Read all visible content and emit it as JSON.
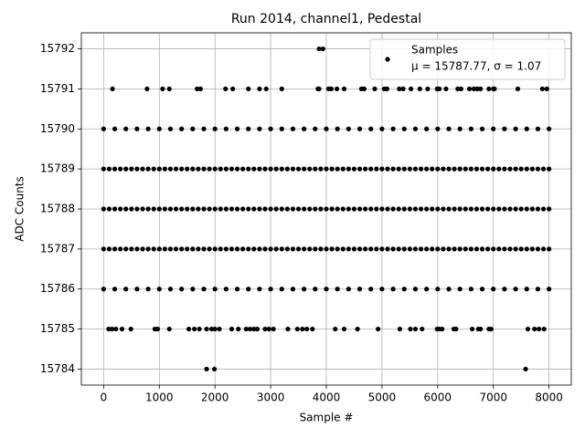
{
  "chart_data": {
    "type": "scatter",
    "title": "Run 2014, channel1, Pedestal",
    "x_label": "Sample #",
    "y_label": "ADC Counts",
    "xlim": [
      -400,
      8400
    ],
    "xticks": [
      0,
      1000,
      2000,
      3000,
      4000,
      5000,
      6000,
      7000,
      8000
    ],
    "ylim": [
      15783.6,
      15792.4
    ],
    "yticks": [
      15784,
      15785,
      15786,
      15787,
      15788,
      15789,
      15790,
      15791,
      15792
    ],
    "grid": true,
    "legend": "upper right",
    "annotation": "μ = 15787.77, σ = 1.07",
    "series": [
      {
        "name": "Samples",
        "color": "#000000",
        "x": [
          0,
          100,
          200,
          300,
          400,
          500,
          600,
          700,
          800,
          900,
          1000,
          1100,
          1200,
          1300,
          1400,
          1500,
          1600,
          1700,
          1800,
          1900,
          2000,
          2100,
          2200,
          2300,
          2400,
          2500,
          2600,
          2700,
          2800,
          2900,
          3000,
          3100,
          3200,
          3300,
          3400,
          3500,
          3600,
          3700,
          3800,
          3900,
          4000,
          4100,
          4200,
          4300,
          4400,
          4500,
          4600,
          4700,
          4800,
          4900,
          5000,
          5100,
          5200,
          5300,
          5400,
          5500,
          5600,
          5700,
          5800,
          5900,
          6000,
          6100,
          6200,
          6300,
          6400,
          6500,
          6600,
          6700,
          6800,
          6900,
          7000,
          7100,
          7200,
          7300,
          7400,
          7500,
          7600,
          7700,
          7800,
          7900,
          8000,
          0,
          100,
          200,
          300,
          400,
          500,
          600,
          700,
          800,
          900,
          1000,
          1100,
          1200,
          1300,
          1400,
          1500,
          1600,
          1700,
          1800,
          1900,
          2000,
          2100,
          2200,
          2300,
          2400,
          2500,
          2600,
          2700,
          2800,
          2900,
          3000,
          3100,
          3200,
          3300,
          3400,
          3500,
          3600,
          3700,
          3800,
          3900,
          4000,
          4100,
          4200,
          4300,
          4400,
          4500,
          4600,
          4700,
          4800,
          4900,
          5000,
          5100,
          5200,
          5300,
          5400,
          5500,
          5600,
          5700,
          5800,
          5900,
          6000,
          6100,
          6200,
          6300,
          6400,
          6500,
          6600,
          6700,
          6800,
          6900,
          7000,
          7100,
          7200,
          7300,
          7400,
          7500,
          7600,
          7700,
          7800,
          7900,
          8000,
          0,
          100,
          200,
          300,
          400,
          500,
          600,
          700,
          800,
          900,
          1000,
          1100,
          1200,
          1300,
          1400,
          1500,
          1600,
          1700,
          1800,
          1900,
          2000,
          2100,
          2200,
          2300,
          2400,
          2500,
          2600,
          2700,
          2800,
          2900,
          3000,
          3100,
          3200,
          3300,
          3400,
          3500,
          3600,
          3700,
          3800,
          3900,
          4000,
          4100,
          4200,
          4300,
          4400,
          4500,
          4600,
          4700,
          4800,
          4900,
          5000,
          5100,
          5200,
          5300,
          5400,
          5500,
          5600,
          5700,
          5800,
          5900,
          6000,
          6100,
          6200,
          6300,
          6400,
          6500,
          6600,
          6700,
          6800,
          6900,
          7000,
          7100,
          7200,
          7300,
          7400,
          7500,
          7600,
          7700,
          7800,
          7900,
          8000,
          0,
          200,
          400,
          600,
          800,
          1000,
          1200,
          1400,
          1600,
          1800,
          2000,
          2200,
          2400,
          2600,
          2800,
          3000,
          3200,
          3400,
          3600,
          3800,
          4000,
          4200,
          4400,
          4600,
          4800,
          5000,
          5200,
          5400,
          5600,
          5800,
          6000,
          6200,
          6400,
          6600,
          6800,
          7000,
          7200,
          7400,
          7600,
          7800,
          8000,
          0,
          200,
          400,
          600,
          800,
          1000,
          1200,
          1400,
          1600,
          1800,
          2000,
          2200,
          2400,
          2600,
          2800,
          3000,
          3200,
          3400,
          3600,
          3800,
          4000,
          4200,
          4400,
          4600,
          4800,
          5000,
          5200,
          5400,
          5600,
          5800,
          6000,
          6200,
          6400,
          6600,
          6800,
          7000,
          7200,
          7400,
          7600,
          7800,
          8000,
          3870,
          3940,
          1850,
          1990,
          7580,
          160,
          780,
          1060,
          1180,
          1680,
          1740,
          2190,
          2320,
          2600,
          2800,
          2920,
          3200,
          3850,
          3870,
          4040,
          4090,
          4190,
          4320,
          4630,
          4680,
          4870,
          5040,
          5090,
          5310,
          5380,
          5520,
          5680,
          5820,
          5990,
          6030,
          6150,
          6360,
          6420,
          6570,
          6650,
          6710,
          6770,
          6920,
          7000,
          7020,
          7440,
          7880,
          7960,
          90,
          150,
          220,
          330,
          490,
          920,
          970,
          1180,
          1530,
          1630,
          1720,
          1850,
          1940,
          2000,
          2080,
          2300,
          2420,
          2560,
          2630,
          2700,
          2760,
          2900,
          2970,
          3050,
          3310,
          3480,
          3570,
          3650,
          3750,
          4160,
          4320,
          4560,
          4930,
          5320,
          5510,
          5600,
          5720,
          5990,
          6030,
          6080,
          6290,
          6330,
          6620,
          6730,
          6770,
          6920,
          6960,
          7620,
          7740,
          7820,
          7910
        ],
        "values": [
          15787,
          15787,
          15787,
          15787,
          15787,
          15787,
          15787,
          15787,
          15787,
          15787,
          15787,
          15787,
          15787,
          15787,
          15787,
          15787,
          15787,
          15787,
          15787,
          15787,
          15787,
          15787,
          15787,
          15787,
          15787,
          15787,
          15787,
          15787,
          15787,
          15787,
          15787,
          15787,
          15787,
          15787,
          15787,
          15787,
          15787,
          15787,
          15787,
          15787,
          15787,
          15787,
          15787,
          15787,
          15787,
          15787,
          15787,
          15787,
          15787,
          15787,
          15787,
          15787,
          15787,
          15787,
          15787,
          15787,
          15787,
          15787,
          15787,
          15787,
          15787,
          15787,
          15787,
          15787,
          15787,
          15787,
          15787,
          15787,
          15787,
          15787,
          15787,
          15787,
          15787,
          15787,
          15787,
          15787,
          15787,
          15787,
          15787,
          15787,
          15787,
          15788,
          15788,
          15788,
          15788,
          15788,
          15788,
          15788,
          15788,
          15788,
          15788,
          15788,
          15788,
          15788,
          15788,
          15788,
          15788,
          15788,
          15788,
          15788,
          15788,
          15788,
          15788,
          15788,
          15788,
          15788,
          15788,
          15788,
          15788,
          15788,
          15788,
          15788,
          15788,
          15788,
          15788,
          15788,
          15788,
          15788,
          15788,
          15788,
          15788,
          15788,
          15788,
          15788,
          15788,
          15788,
          15788,
          15788,
          15788,
          15788,
          15788,
          15788,
          15788,
          15788,
          15788,
          15788,
          15788,
          15788,
          15788,
          15788,
          15788,
          15788,
          15788,
          15788,
          15788,
          15788,
          15788,
          15788,
          15788,
          15788,
          15788,
          15788,
          15788,
          15788,
          15788,
          15788,
          15788,
          15788,
          15788,
          15788,
          15788,
          15788,
          15789,
          15789,
          15789,
          15789,
          15789,
          15789,
          15789,
          15789,
          15789,
          15789,
          15789,
          15789,
          15789,
          15789,
          15789,
          15789,
          15789,
          15789,
          15789,
          15789,
          15789,
          15789,
          15789,
          15789,
          15789,
          15789,
          15789,
          15789,
          15789,
          15789,
          15789,
          15789,
          15789,
          15789,
          15789,
          15789,
          15789,
          15789,
          15789,
          15789,
          15789,
          15789,
          15789,
          15789,
          15789,
          15789,
          15789,
          15789,
          15789,
          15789,
          15789,
          15789,
          15789,
          15789,
          15789,
          15789,
          15789,
          15789,
          15789,
          15789,
          15789,
          15789,
          15789,
          15789,
          15789,
          15789,
          15789,
          15789,
          15789,
          15789,
          15789,
          15789,
          15789,
          15789,
          15789,
          15789,
          15789,
          15789,
          15789,
          15789,
          15789,
          15786,
          15786,
          15786,
          15786,
          15786,
          15786,
          15786,
          15786,
          15786,
          15786,
          15786,
          15786,
          15786,
          15786,
          15786,
          15786,
          15786,
          15786,
          15786,
          15786,
          15786,
          15786,
          15786,
          15786,
          15786,
          15786,
          15786,
          15786,
          15786,
          15786,
          15786,
          15786,
          15786,
          15786,
          15786,
          15786,
          15786,
          15786,
          15786,
          15786,
          15786,
          15790,
          15790,
          15790,
          15790,
          15790,
          15790,
          15790,
          15790,
          15790,
          15790,
          15790,
          15790,
          15790,
          15790,
          15790,
          15790,
          15790,
          15790,
          15790,
          15790,
          15790,
          15790,
          15790,
          15790,
          15790,
          15790,
          15790,
          15790,
          15790,
          15790,
          15790,
          15790,
          15790,
          15790,
          15790,
          15790,
          15790,
          15790,
          15790,
          15790,
          15790,
          15792,
          15792,
          15784,
          15784,
          15784,
          15791,
          15791,
          15791,
          15791,
          15791,
          15791,
          15791,
          15791,
          15791,
          15791,
          15791,
          15791,
          15791,
          15791,
          15791,
          15791,
          15791,
          15791,
          15791,
          15791,
          15791,
          15791,
          15791,
          15791,
          15791,
          15791,
          15791,
          15791,
          15791,
          15791,
          15791,
          15791,
          15791,
          15791,
          15791,
          15791,
          15791,
          15791,
          15791,
          15791,
          15791,
          15791,
          15791,
          15785,
          15785,
          15785,
          15785,
          15785,
          15785,
          15785,
          15785,
          15785,
          15785,
          15785,
          15785,
          15785,
          15785,
          15785,
          15785,
          15785,
          15785,
          15785,
          15785,
          15785,
          15785,
          15785,
          15785,
          15785,
          15785,
          15785,
          15785,
          15785,
          15785,
          15785,
          15785,
          15785,
          15785,
          15785,
          15785,
          15785,
          15785,
          15785,
          15785,
          15785,
          15785,
          15785,
          15785,
          15785,
          15785,
          15785,
          15785,
          15785,
          15785,
          15785
        ]
      }
    ]
  }
}
